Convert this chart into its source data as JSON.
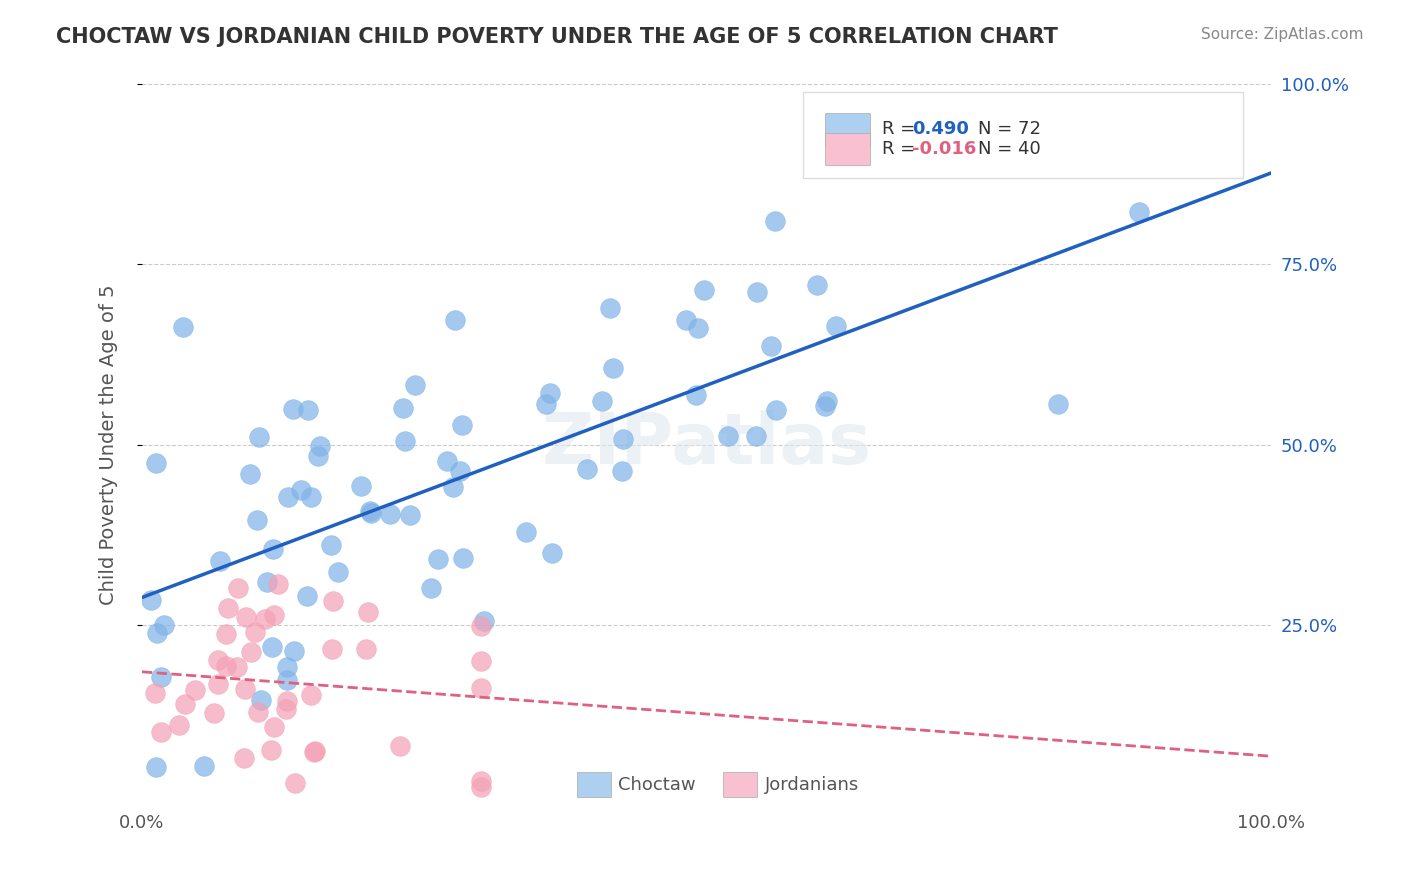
{
  "title": "CHOCTAW VS JORDANIAN CHILD POVERTY UNDER THE AGE OF 5 CORRELATION CHART",
  "source": "Source: ZipAtlas.com",
  "ylabel": "Child Poverty Under the Age of 5",
  "xlim": [
    0,
    1
  ],
  "ylim": [
    0,
    1
  ],
  "watermark": "ZIPatlas",
  "choctaw_R": 0.49,
  "choctaw_N": 72,
  "jordanian_R": -0.016,
  "jordanian_N": 40,
  "choctaw_color": "#7FB3E8",
  "choctaw_line_color": "#2060C0",
  "jordanian_color": "#F4A0B5",
  "jordanian_line_color": "#E06080",
  "legend_choctaw_color": "#AED0F0",
  "legend_jordanian_color": "#F8C0D0",
  "background_color": "#FFFFFF",
  "grid_color": "#CCCCCC",
  "title_color": "#333333",
  "axis_label_color": "#555555"
}
